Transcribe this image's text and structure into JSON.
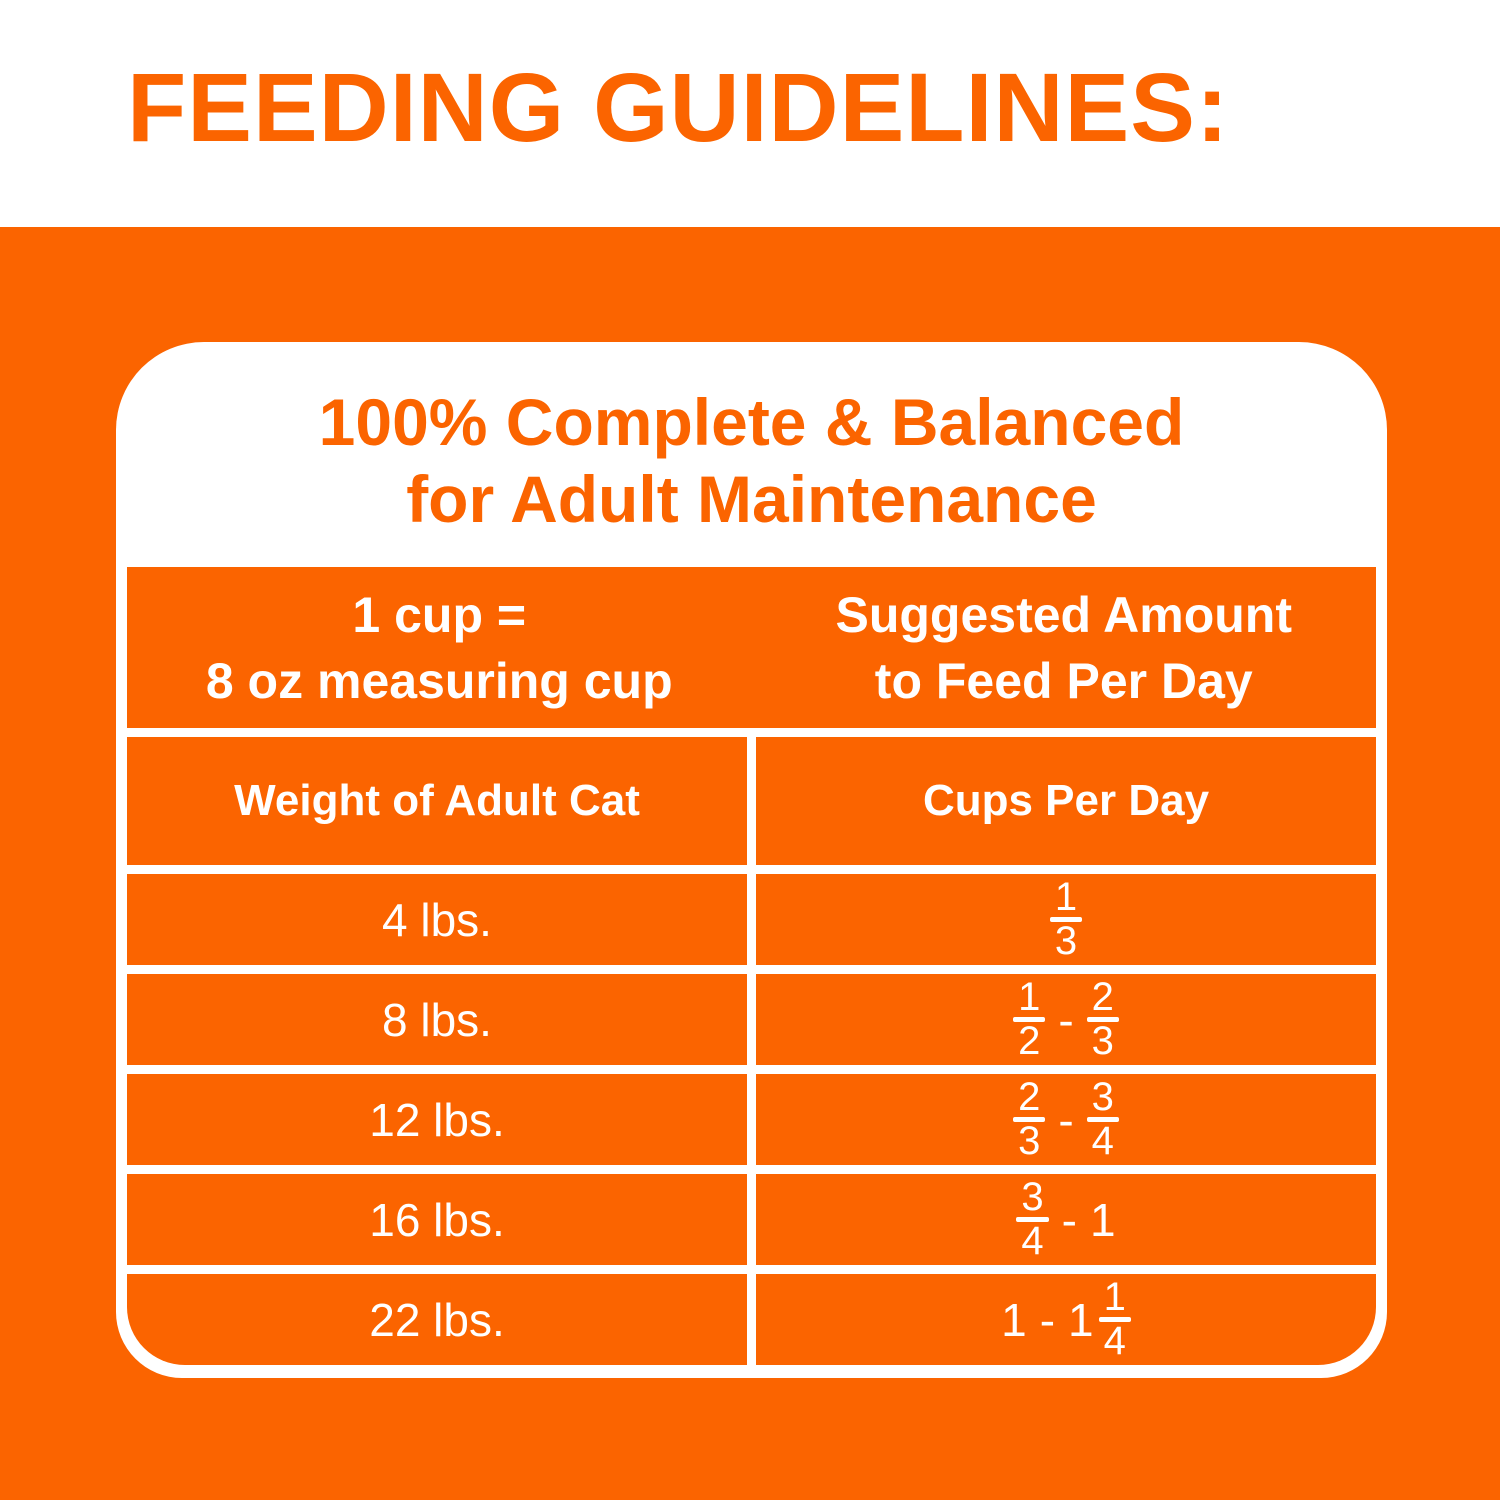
{
  "heading": "FEEDING GUIDELINES:",
  "colors": {
    "orange": "#FB6400",
    "white": "#FFFFFF"
  },
  "card": {
    "title_line1": "100% Complete & Balanced",
    "title_line2": "for Adult Maintenance",
    "table": {
      "cup_header": {
        "line1": "1 cup =",
        "line2": "8 oz measuring cup"
      },
      "amount_header": {
        "line1": "Suggested Amount",
        "line2": "to Feed Per Day"
      },
      "weight_col_header": "Weight of Adult Cat",
      "cups_col_header": "Cups Per Day",
      "dash_symbol": "-",
      "rows": [
        {
          "weight": "4 lbs.",
          "cups": [
            {
              "type": "frac",
              "num": "1",
              "den": "3"
            }
          ]
        },
        {
          "weight": "8 lbs.",
          "cups": [
            {
              "type": "frac",
              "num": "1",
              "den": "2"
            },
            {
              "type": "dash"
            },
            {
              "type": "frac",
              "num": "2",
              "den": "3"
            }
          ]
        },
        {
          "weight": "12 lbs.",
          "cups": [
            {
              "type": "frac",
              "num": "2",
              "den": "3"
            },
            {
              "type": "dash"
            },
            {
              "type": "frac",
              "num": "3",
              "den": "4"
            }
          ]
        },
        {
          "weight": "16 lbs.",
          "cups": [
            {
              "type": "frac",
              "num": "3",
              "den": "4"
            },
            {
              "type": "dash"
            },
            {
              "type": "whole",
              "value": "1"
            }
          ]
        },
        {
          "weight": "22 lbs.",
          "cups": [
            {
              "type": "whole",
              "value": "1"
            },
            {
              "type": "dash"
            },
            {
              "type": "mixed",
              "whole": "1",
              "num": "1",
              "den": "4"
            }
          ]
        }
      ]
    }
  }
}
